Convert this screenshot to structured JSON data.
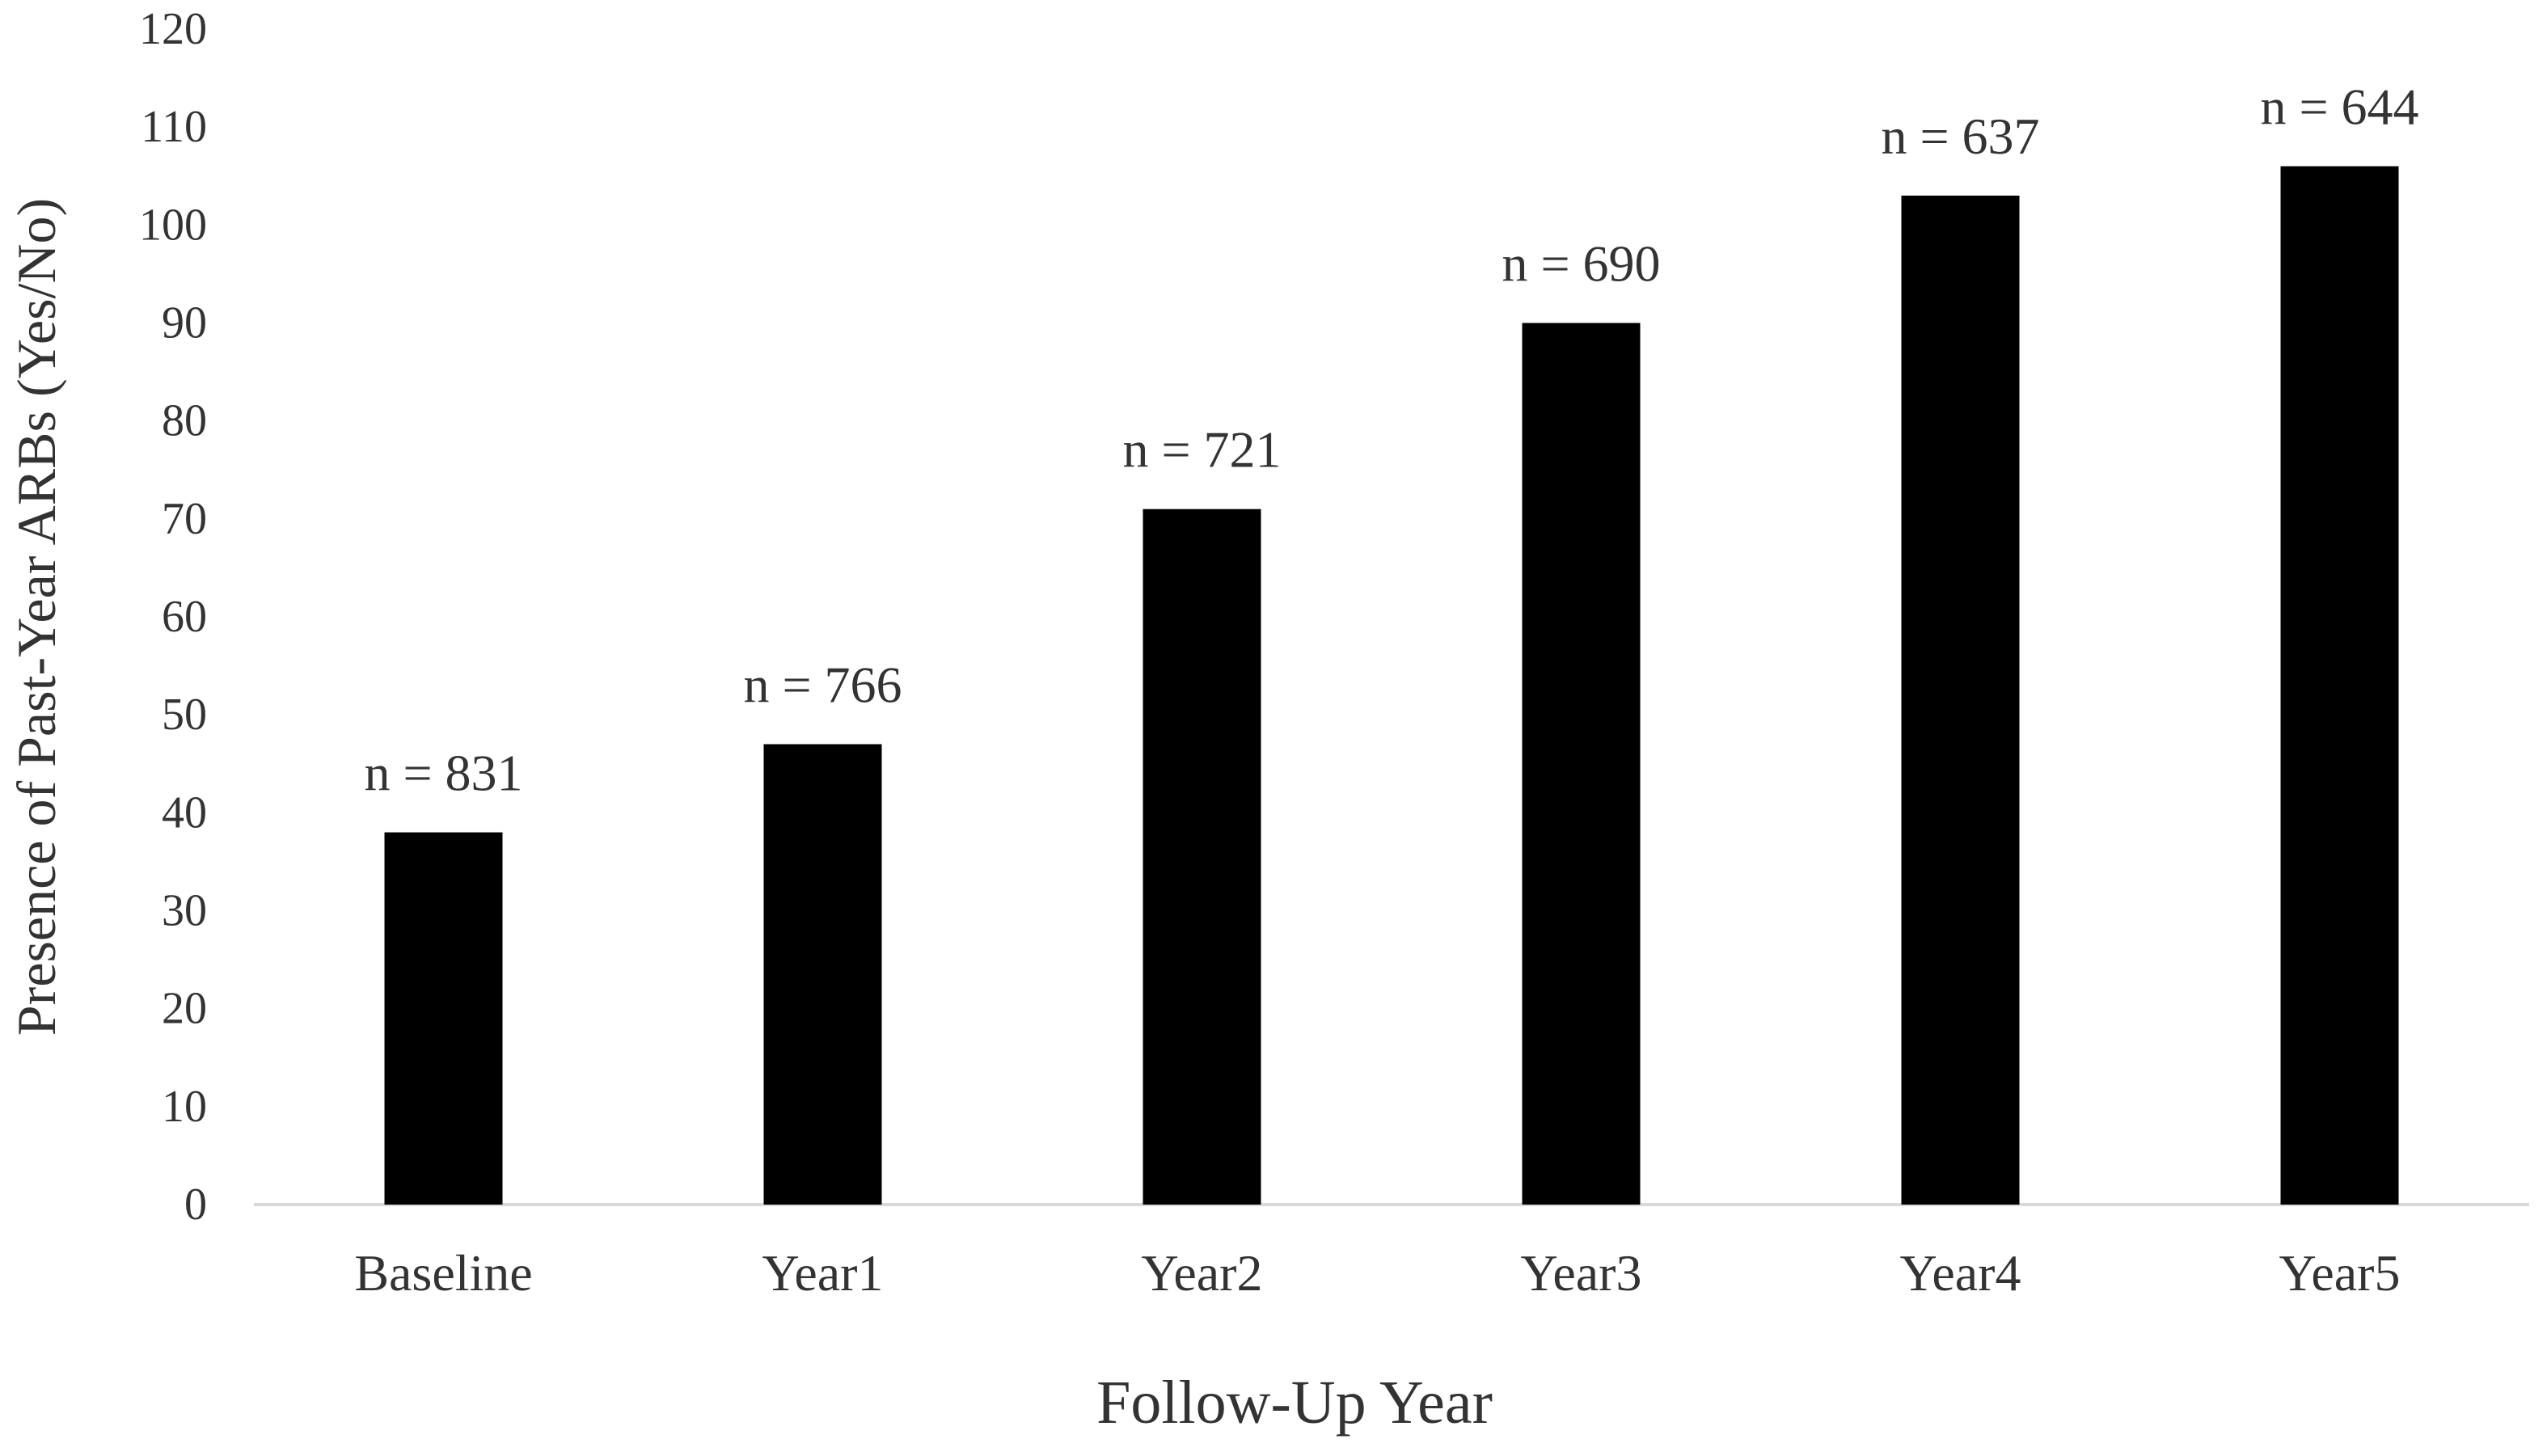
{
  "chart_data": {
    "type": "bar",
    "title": "",
    "xlabel": "Follow-Up Year",
    "ylabel": "Presence of Past-Year ARBs (Yes/No)",
    "categories": [
      "Baseline",
      "Year1",
      "Year2",
      "Year3",
      "Year4",
      "Year5"
    ],
    "values": [
      38,
      47,
      71,
      90,
      103,
      106
    ],
    "data_labels": [
      "n = 831",
      "n = 766",
      "n = 721",
      "n = 690",
      "n = 637",
      "n = 644"
    ],
    "ylim": [
      0,
      120
    ],
    "yticks": [
      0,
      10,
      20,
      30,
      40,
      50,
      60,
      70,
      80,
      90,
      100,
      110,
      120
    ],
    "grid": false,
    "legend": "none",
    "bar_color": "#000000",
    "axis_color": "#d9d9d9",
    "text_color": "#333333"
  }
}
